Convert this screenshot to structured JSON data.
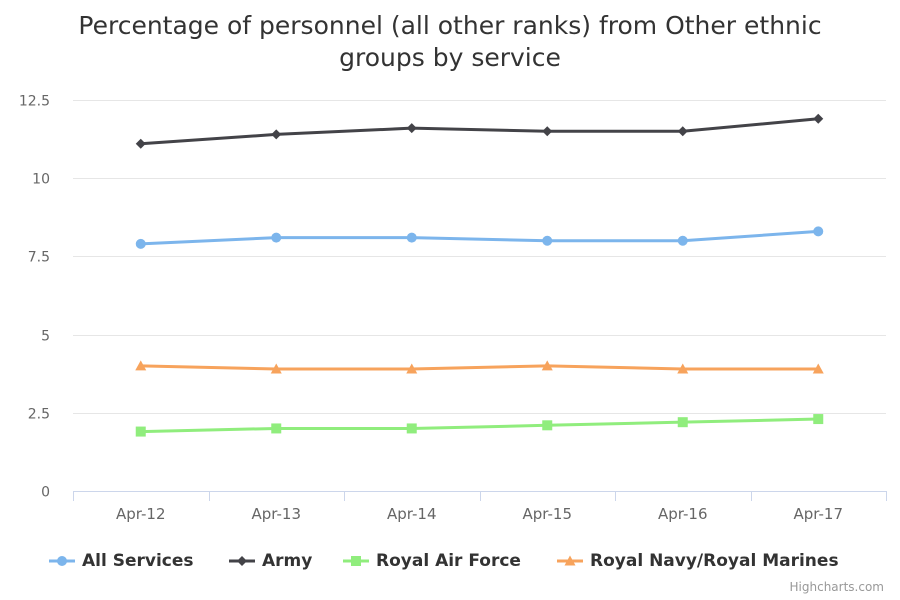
{
  "chart_data": {
    "type": "line",
    "title": "Percentage of personnel (all other ranks) from Other ethnic groups by service",
    "categories": [
      "Apr-12",
      "Apr-13",
      "Apr-14",
      "Apr-15",
      "Apr-16",
      "Apr-17"
    ],
    "ylim": [
      0,
      12.5
    ],
    "yticks": [
      "0",
      "2.5",
      "5",
      "7.5",
      "10",
      "12.5"
    ],
    "grid": true,
    "legend_position": "bottom",
    "series": [
      {
        "name": "All Services",
        "color": "#7cb5ec",
        "marker": "circle",
        "values": [
          7.9,
          8.1,
          8.1,
          8.0,
          8.0,
          8.3
        ]
      },
      {
        "name": "Army",
        "color": "#434348",
        "marker": "diamond",
        "values": [
          11.1,
          11.4,
          11.6,
          11.5,
          11.5,
          11.9
        ]
      },
      {
        "name": "Royal Air Force",
        "color": "#90ed7d",
        "marker": "square",
        "values": [
          1.9,
          2.0,
          2.0,
          2.1,
          2.2,
          2.3
        ]
      },
      {
        "name": "Royal Navy/Royal Marines",
        "color": "#f7a35c",
        "marker": "triangle",
        "values": [
          4.0,
          3.9,
          3.9,
          4.0,
          3.9,
          3.9
        ]
      }
    ]
  },
  "credits": "Highcharts.com"
}
